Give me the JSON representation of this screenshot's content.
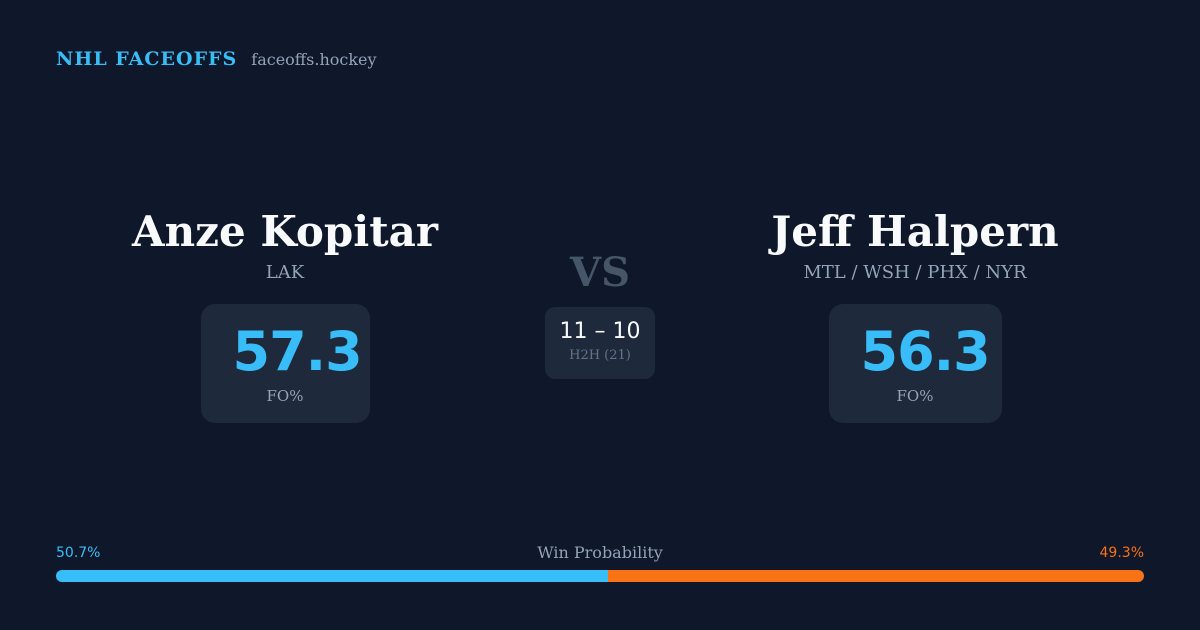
{
  "brand": {
    "title": "NHL FACEOFFS",
    "domain": "faceoffs.hockey"
  },
  "player1": {
    "name": "Anze Kopitar",
    "team": "LAK",
    "fo_value": "57.3",
    "fo_label": "FO%"
  },
  "player2": {
    "name": "Jeff Halpern",
    "team": "MTL / WSH / PHX / NYR",
    "fo_value": "56.3",
    "fo_label": "FO%"
  },
  "versus": {
    "label": "VS",
    "h2h_score": "11 – 10",
    "h2h_label": "H2H (21)"
  },
  "win_probability": {
    "label": "Win Probability",
    "left_text": "50.7%",
    "right_text": "49.3%",
    "left_fraction": 0.507,
    "right_fraction": 0.493
  },
  "colors": {
    "background": "#0f172a",
    "card": "#1e293b",
    "accent_blue": "#38bdf8",
    "accent_orange": "#f97316",
    "muted_text": "#94a3b8"
  }
}
